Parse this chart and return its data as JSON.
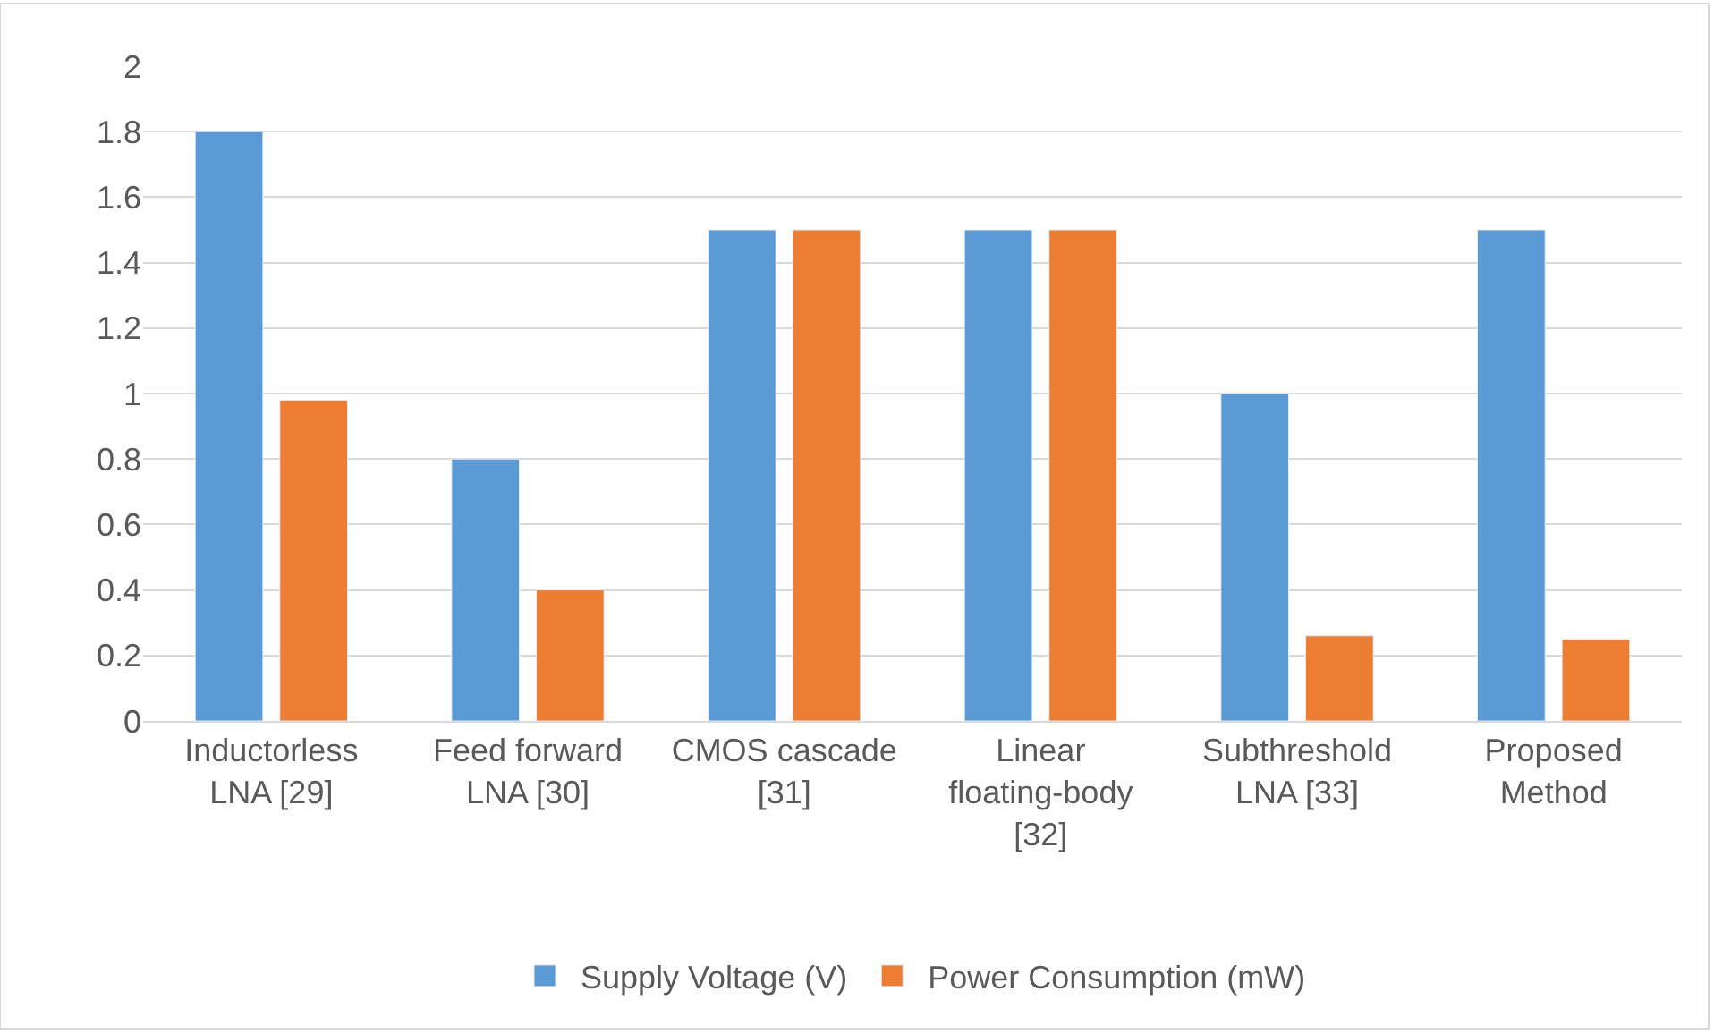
{
  "chart_data": {
    "type": "bar",
    "categories": [
      "Inductorless LNA [29]",
      "Feed forward LNA [30]",
      "CMOS cascade [31]",
      "Linear floating-body [32]",
      "Subthreshold LNA [33]",
      "Proposed Method"
    ],
    "series": [
      {
        "name": "Supply Voltage (V)",
        "color": "#5b9bd5",
        "values": [
          1.8,
          0.8,
          1.5,
          1.5,
          1.0,
          1.5
        ]
      },
      {
        "name": "Power Consumption (mW)",
        "color": "#ed7d31",
        "values": [
          0.98,
          0.4,
          1.5,
          1.5,
          0.26,
          0.25
        ]
      }
    ],
    "ylim": [
      0,
      2
    ],
    "yticks": [
      0,
      {
        "value": 0.2,
        "label": "0.2"
      },
      {
        "value": 0.4,
        "label": "0.4"
      },
      {
        "value": 0.6,
        "label": "0.6"
      },
      {
        "value": 0.8,
        "label": "0.8"
      },
      1,
      {
        "value": 1.2,
        "label": "1.2"
      },
      {
        "value": 1.4,
        "label": "1.4"
      },
      {
        "value": 1.6,
        "label": "1.6"
      },
      {
        "value": 1.8,
        "label": "1.8"
      },
      2
    ],
    "grid": "y",
    "legend": "bottom"
  }
}
